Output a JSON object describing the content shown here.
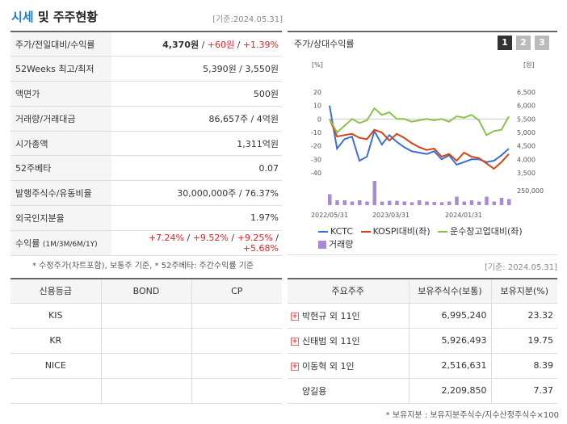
{
  "header": {
    "title_a": "시세",
    "title_b": " 및 주주현황",
    "base_date": "[기준:2024.05.31]"
  },
  "info": [
    {
      "key": "주가/전일대비/수익률",
      "price": "4,370원",
      "sep1": " / ",
      "change": "+60원",
      "sep2": " / ",
      "rate": "+1.39%"
    },
    {
      "key": "52Weeks 최고/최저",
      "value": "5,390원 / 3,550원"
    },
    {
      "key": "액면가",
      "value": "500원"
    },
    {
      "key": "거래량/거래대금",
      "value": "86,657주 / 4억원"
    },
    {
      "key": "시가총액",
      "value": "1,311억원"
    },
    {
      "key": "52주베타",
      "value": "0.07"
    },
    {
      "key": "발행주식수/유동비율",
      "value": "30,000,000주 / 76.37%"
    },
    {
      "key": "외국인지분율",
      "value": "1.97%"
    },
    {
      "key": "수익률",
      "key_sub": "(1M/3M/6M/1Y)",
      "r1": "+7.24%",
      "r2": "+9.52%",
      "r3": "+9.25%",
      "r4": "+5.68%",
      "sep": "/"
    }
  ],
  "note1": "* 수정주가(차트포함), 보통주 기준, * 52주베타: 주간수익률 기준",
  "chart": {
    "title": "주가/상대수익률",
    "tabs": [
      "1",
      "2",
      "3"
    ],
    "left_unit": "[%]",
    "right_unit": "[원]"
  },
  "chart_data": {
    "type": "line",
    "x_ticks": [
      "2022/05/31",
      "2023/03/31",
      "2024/01/31"
    ],
    "y_left_ticks": [
      "20",
      "10",
      "0",
      "-10",
      "-20",
      "-30",
      "-40"
    ],
    "y_right_ticks": [
      "6,500",
      "6,000",
      "5,500",
      "5,000",
      "4,500",
      "4,000",
      "3,500"
    ],
    "y_volume_tick": "250,000",
    "ylim_left": [
      -40,
      20
    ],
    "series": [
      {
        "name": "KCTC",
        "color": "#3a6fd8",
        "values": [
          10,
          -22,
          -15,
          -13,
          -31,
          -28,
          -9,
          -19,
          -12,
          -17,
          -21,
          -24,
          -25,
          -26,
          -24,
          -30,
          -27,
          -34,
          -32,
          -30,
          -30,
          -32,
          -31,
          -27,
          -22
        ]
      },
      {
        "name": "KOSPI대비(좌)",
        "color": "#d84315",
        "values": [
          0,
          -13,
          -12,
          -11,
          -14,
          -15,
          -8,
          -10,
          -16,
          -11,
          -14,
          -18,
          -21,
          -23,
          -22,
          -28,
          -26,
          -31,
          -25,
          -28,
          -29,
          -33,
          -37,
          -32,
          -26
        ]
      },
      {
        "name": "운수창고업대비(좌)",
        "color": "#8bc34a",
        "values": [
          0,
          -10,
          -5,
          0,
          -3,
          -1,
          8,
          3,
          5,
          0,
          0,
          -2,
          -1,
          0,
          -1,
          0,
          -2,
          2,
          1,
          3,
          -1,
          -12,
          -9,
          -8,
          2
        ]
      }
    ],
    "volume": {
      "name": "거래량",
      "color": "#a98ad8",
      "values": [
        0.45,
        0.2,
        0.2,
        0.15,
        0.2,
        0.15,
        1.0,
        0.15,
        0.18,
        0.18,
        0.15,
        0.12,
        0.2,
        0.15,
        0.13,
        0.12,
        0.15,
        0.35,
        0.15,
        0.2,
        0.15,
        0.35,
        0.15,
        0.3,
        0.25
      ]
    }
  },
  "credit": {
    "headers": [
      "신용등급",
      "BOND",
      "CP"
    ],
    "rows": [
      [
        "KIS",
        "",
        ""
      ],
      [
        "KR",
        "",
        ""
      ],
      [
        "NICE",
        "",
        ""
      ],
      [
        "",
        "",
        ""
      ]
    ]
  },
  "basedate2": "[기준: 2024.05.31]",
  "holders": {
    "headers": [
      "주요주주",
      "보유주식수(보통)",
      "보유지분(%)"
    ],
    "rows": [
      {
        "name": "박현규 외 11인",
        "shares": "6,995,240",
        "pct": "23.32",
        "expand": true
      },
      {
        "name": "신태범 외 11인",
        "shares": "5,926,493",
        "pct": "19.75",
        "expand": true
      },
      {
        "name": "이동혁 외 1인",
        "shares": "2,516,631",
        "pct": "8.39",
        "expand": true
      },
      {
        "name": "양길용",
        "shares": "2,209,850",
        "pct": "7.37",
        "expand": false
      }
    ]
  },
  "note2": "* 보유지분 : 보유지분주식수/지수산정주식수×100"
}
